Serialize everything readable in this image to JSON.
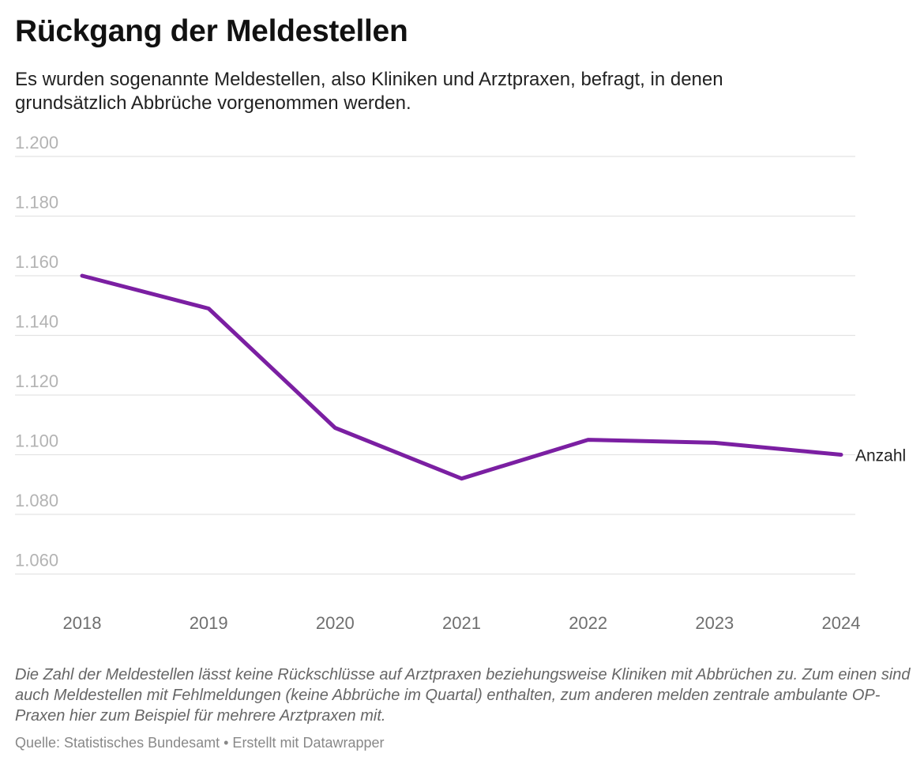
{
  "header": {
    "title": "Rückgang der Meldestellen",
    "subtitle": "Es wurden sogenannte Meldestellen, also Kliniken und Arztpraxen, befragt, in denen grundsätzlich Abbrüche vorgenommen werden."
  },
  "chart_data": {
    "type": "line",
    "x": [
      "2018",
      "2019",
      "2020",
      "2021",
      "2022",
      "2023",
      "2024"
    ],
    "series": [
      {
        "name": "Anzahl",
        "values": [
          1160,
          1149,
          1109,
          1092,
          1105,
          1104,
          1100
        ],
        "color": "#7b1fa2"
      }
    ],
    "ylim": [
      1050,
      1200
    ],
    "yticks": [
      1200,
      1180,
      1160,
      1140,
      1120,
      1100,
      1080,
      1060
    ],
    "ytick_labels": [
      "1.200",
      "1.180",
      "1.160",
      "1.140",
      "1.120",
      "1.100",
      "1.080",
      "1.060"
    ],
    "grid": true,
    "legend": "inline label at line end"
  },
  "footer": {
    "notes": "Die Zahl der Meldestellen lässt keine Rückschlüsse auf Arztpraxen beziehungsweise Kliniken mit Abbrüchen zu. Zum einen sind auch Meldestellen mit Fehlmeldungen (keine Abbrüche im Quartal) enthalten, zum anderen melden zentrale ambulante OP-Praxen hier zum Beispiel für mehrere Arztpraxen mit.",
    "source": "Quelle: Statistisches Bundesamt • Erstellt mit Datawrapper"
  }
}
